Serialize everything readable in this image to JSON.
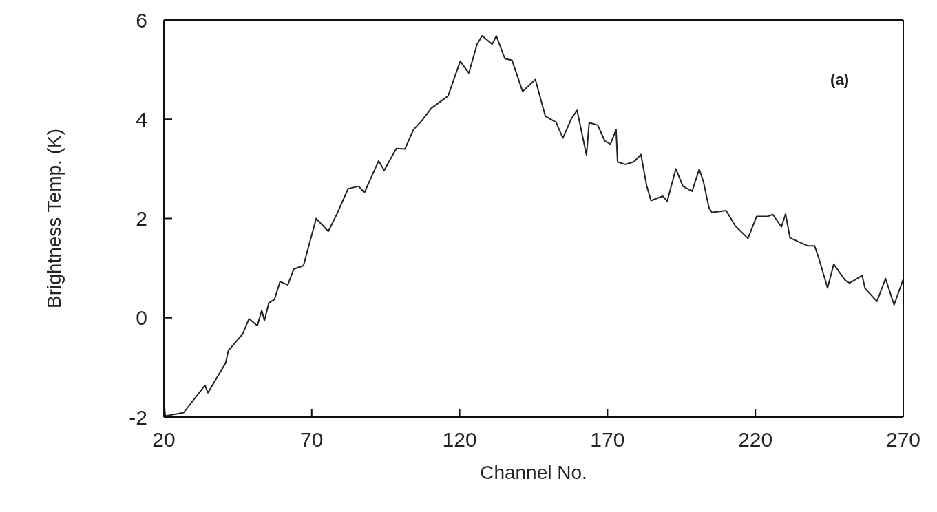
{
  "chart_data": {
    "type": "line",
    "xlabel": "Channel No.",
    "ylabel": "Brightness Temp. (K)",
    "annotations": [
      "(a)"
    ],
    "xlim": [
      20,
      270
    ],
    "xticks": [
      20,
      70,
      120,
      170,
      220,
      270
    ],
    "ylim": [
      -2,
      6
    ],
    "yticks": [
      -2,
      0,
      2,
      4,
      6
    ],
    "marker": "none",
    "line_style": "solid",
    "series": [
      {
        "color": "#222222",
        "x": [
          20,
          20.5,
          26.7,
          30.1,
          33.9,
          34.9,
          40.9,
          41.8,
          46.6,
          48.8,
          51.6,
          53.1,
          54.0,
          55.5,
          57.4,
          59.3,
          61.9,
          63.9,
          67.2,
          71.5,
          75.6,
          78.5,
          82.3,
          85.9,
          87.8,
          92.6,
          94.5,
          98.6,
          101.5,
          104.4,
          107.2,
          110.4,
          116.1,
          120.2,
          123.1,
          125.9,
          127.6,
          131.0,
          132.4,
          135.3,
          137.7,
          141.3,
          145.6,
          149.0,
          152.6,
          154.9,
          157.8,
          159.7,
          162.9,
          163.8,
          166.7,
          169.1,
          171.0,
          172.9,
          173.4,
          176.0,
          178.9,
          181.3,
          183.2,
          184.7,
          188.7,
          190.2,
          193.1,
          195.5,
          198.6,
          201.0,
          202.4,
          204.3,
          205.3,
          210.1,
          213.2,
          217.5,
          220.4,
          224.0,
          225.9,
          228.8,
          230.2,
          231.7,
          237.6,
          240.0,
          241.5,
          244.4,
          246.5,
          250.3,
          251.8,
          256.1,
          257.1,
          261.1,
          264.0,
          266.9,
          270
        ],
        "values": [
          -1.66,
          -1.98,
          -1.91,
          -1.65,
          -1.36,
          -1.51,
          -0.91,
          -0.66,
          -0.33,
          -0.02,
          -0.16,
          0.15,
          -0.06,
          0.3,
          0.37,
          0.73,
          0.66,
          0.98,
          1.05,
          2.0,
          1.74,
          2.09,
          2.6,
          2.65,
          2.52,
          3.16,
          2.97,
          3.41,
          3.4,
          3.79,
          3.97,
          4.22,
          4.47,
          5.17,
          4.93,
          5.51,
          5.68,
          5.51,
          5.68,
          5.22,
          5.19,
          4.56,
          4.8,
          4.06,
          3.94,
          3.62,
          4.01,
          4.18,
          3.28,
          3.93,
          3.88,
          3.56,
          3.5,
          3.79,
          3.14,
          3.09,
          3.14,
          3.29,
          2.67,
          2.36,
          2.45,
          2.35,
          3.0,
          2.65,
          2.55,
          2.99,
          2.75,
          2.22,
          2.12,
          2.16,
          1.85,
          1.6,
          2.04,
          2.04,
          2.08,
          1.83,
          2.09,
          1.61,
          1.45,
          1.45,
          1.19,
          0.6,
          1.08,
          0.76,
          0.7,
          0.85,
          0.59,
          0.33,
          0.79,
          0.26,
          0.78
        ]
      }
    ]
  }
}
